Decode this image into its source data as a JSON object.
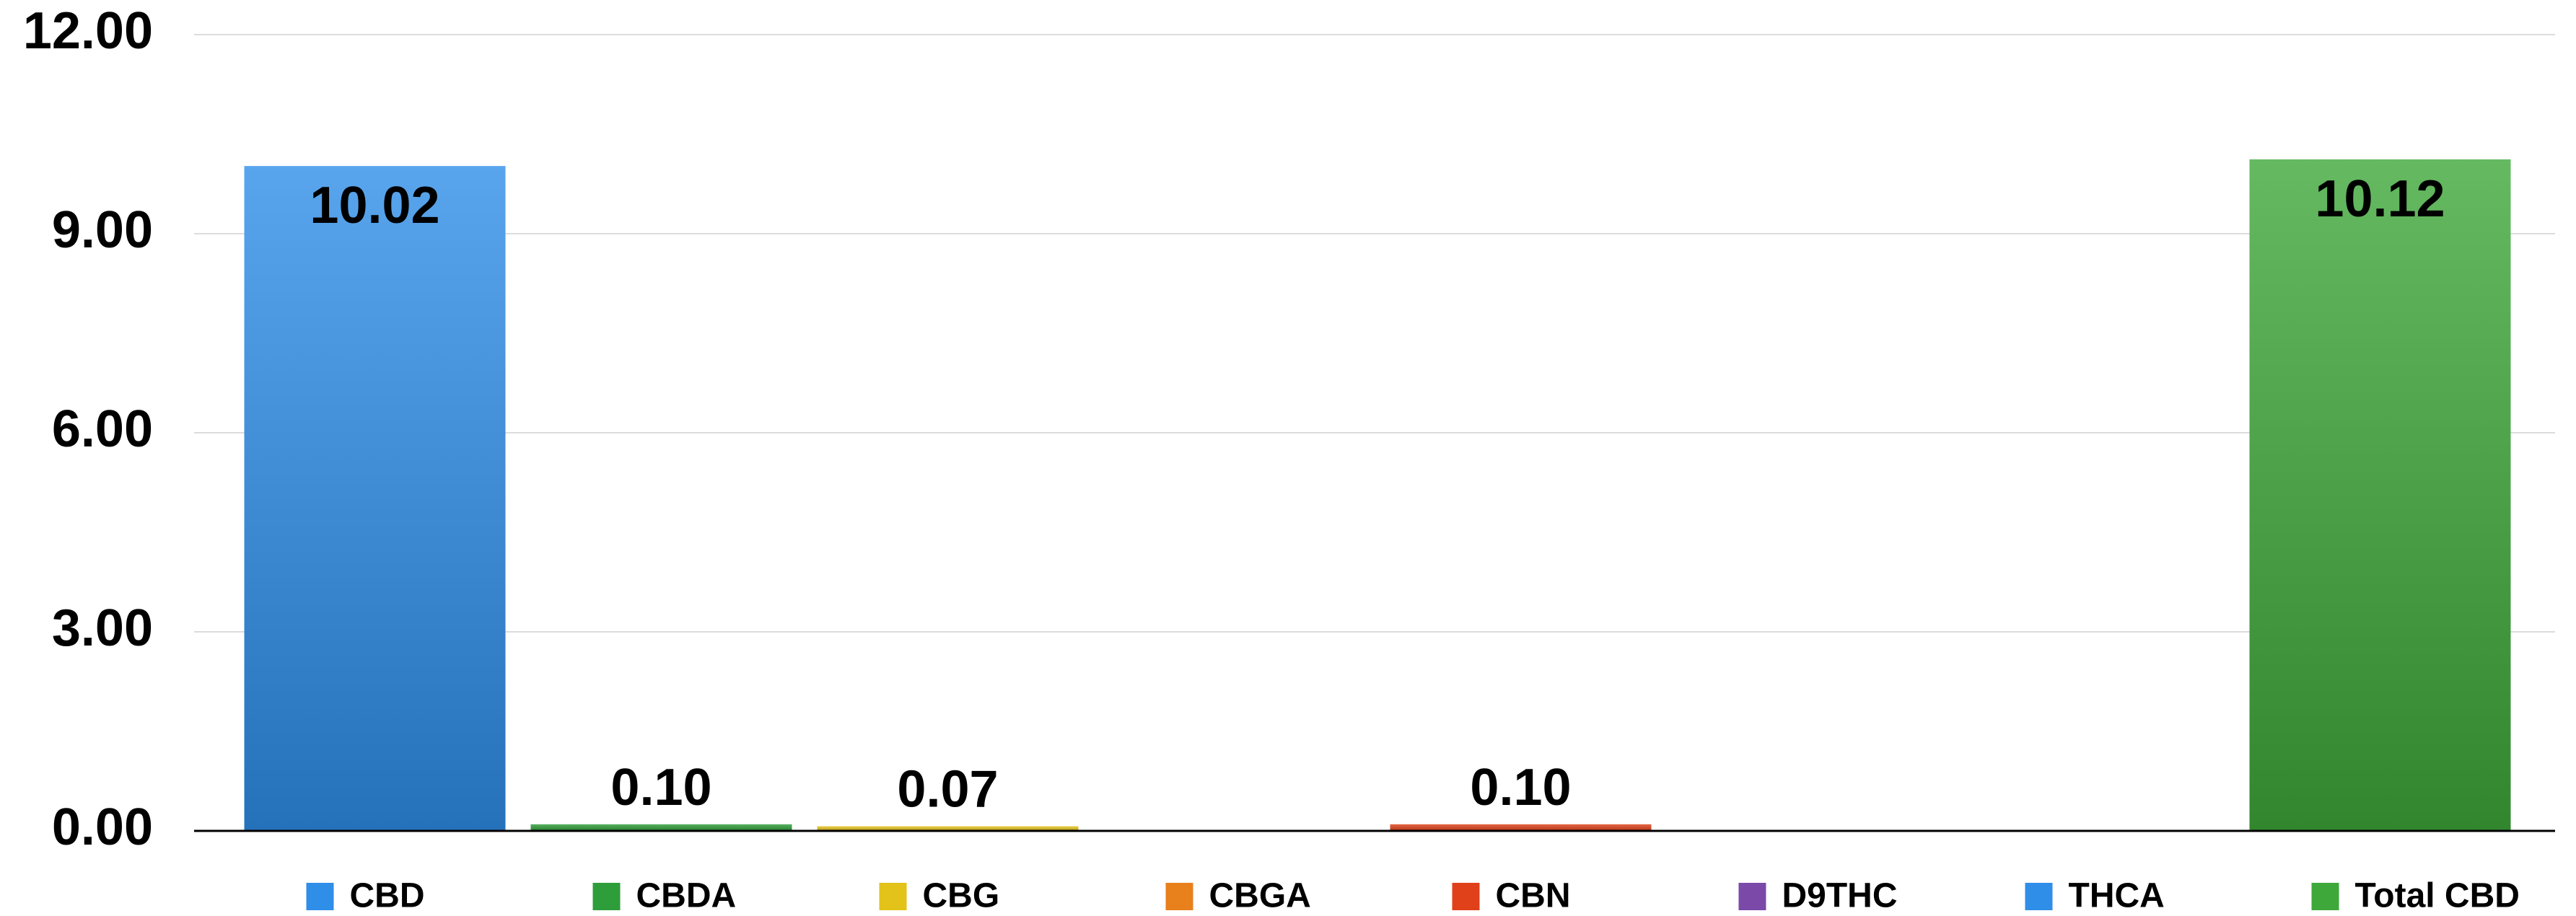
{
  "chart_data": {
    "type": "bar",
    "categories": [
      "CBD",
      "CBDA",
      "CBG",
      "CBGA",
      "CBN",
      "D9THC",
      "THCA",
      "Total CBD"
    ],
    "values": [
      10.02,
      0.1,
      0.07,
      null,
      0.1,
      null,
      null,
      10.12
    ],
    "value_labels": [
      "10.02",
      "0.10",
      "0.07",
      null,
      "0.10",
      null,
      null,
      "10.12"
    ],
    "colors": [
      "#2f8ee8",
      "#2e9e3a",
      "#e3c21a",
      "#e8801c",
      "#e0401a",
      "#7b4aa8",
      "#2f8ee8",
      "#3ea83a"
    ],
    "ylim": [
      0,
      12
    ],
    "yticks": [
      {
        "value": 0,
        "label": "0.00"
      },
      {
        "value": 3,
        "label": "3.00"
      },
      {
        "value": 6,
        "label": "6.00"
      },
      {
        "value": 9,
        "label": "9.00"
      },
      {
        "value": 12,
        "label": "12.00"
      }
    ],
    "grid": true
  }
}
